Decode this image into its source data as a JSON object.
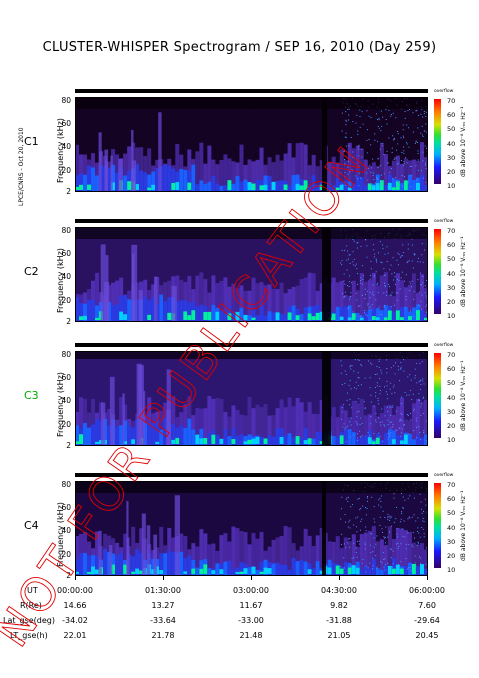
{
  "title": "CLUSTER-WHISPER Spectrogram / SEP 16, 2010 (Day 259)",
  "side_note": "LPCE/CNRS - Oct 20, 2010",
  "panels": [
    {
      "name": "C1",
      "color": "#000000"
    },
    {
      "name": "C2",
      "color": "#000000"
    },
    {
      "name": "C3",
      "color": "#00aa00"
    },
    {
      "name": "C4",
      "color": "#000000"
    }
  ],
  "yaxis_title": "Frequency (kHz)",
  "colorbar": {
    "header": "overflow",
    "title": "dB above 10⁻⁸ Vₘₛ Hz⁻¹",
    "ticks": [
      "70",
      "60",
      "50",
      "40",
      "30",
      "20",
      "10"
    ]
  },
  "ephemeris": {
    "labels": [
      "UT",
      "R(Re)",
      "Lat_gse(deg)",
      "LT_gse(h)"
    ],
    "rows": [
      {
        "ut": "00:00:00",
        "r": "14.66",
        "lat": "-34.02",
        "lt": "22.01"
      },
      {
        "ut": "01:30:00",
        "r": "13.27",
        "lat": "-33.64",
        "lt": "21.78"
      },
      {
        "ut": "03:00:00",
        "r": "11.67",
        "lat": "-33.00",
        "lt": "21.48"
      },
      {
        "ut": "04:30:00",
        "r": "9.82",
        "lat": "-31.88",
        "lt": "21.05"
      },
      {
        "ut": "06:00:00",
        "r": "7.60",
        "lat": "-29.64",
        "lt": "20.45"
      }
    ]
  },
  "stamp_text": "NOT FOR PUBLICATION",
  "chart_data": {
    "type": "heatmap",
    "title": "CLUSTER-WHISPER Spectrogram / SEP 16, 2010 (Day 259)",
    "xlabel": "UT",
    "ylabel": "Frequency (kHz)",
    "x_ticks": [
      "00:00:00",
      "01:30:00",
      "03:00:00",
      "04:30:00",
      "06:00:00"
    ],
    "y_ticks": [
      "2",
      "20",
      "40",
      "60",
      "80"
    ],
    "ylim": [
      2,
      83
    ],
    "color_range_db": [
      10,
      70
    ],
    "series": [
      {
        "name": "C1"
      },
      {
        "name": "C2"
      },
      {
        "name": "C3"
      },
      {
        "name": "C4"
      }
    ]
  }
}
